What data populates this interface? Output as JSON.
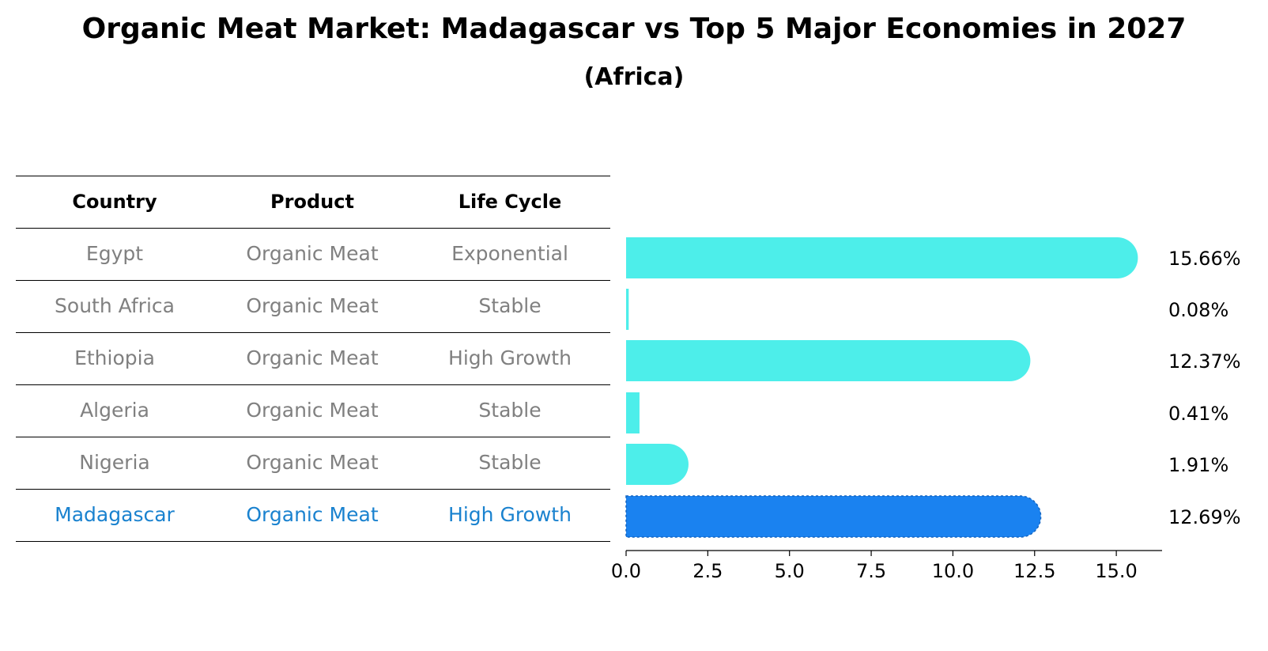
{
  "title": "Organic Meat Market: Madagascar vs Top 5 Major Economies in 2027",
  "subtitle": "(Africa)",
  "table": {
    "headers": [
      "Country",
      "Product",
      "Life Cycle"
    ],
    "rows": [
      {
        "country": "Egypt",
        "product": "Organic Meat",
        "life_cycle": "Exponential",
        "highlight": false
      },
      {
        "country": "South Africa",
        "product": "Organic Meat",
        "life_cycle": "Stable",
        "highlight": false
      },
      {
        "country": "Ethiopia",
        "product": "Organic Meat",
        "life_cycle": "High Growth",
        "highlight": false
      },
      {
        "country": "Algeria",
        "product": "Organic Meat",
        "life_cycle": "Stable",
        "highlight": false
      },
      {
        "country": "Nigeria",
        "product": "Organic Meat",
        "life_cycle": "Stable",
        "highlight": false
      },
      {
        "country": "Madagascar",
        "product": "Organic Meat",
        "life_cycle": "High Growth",
        "highlight": true
      }
    ]
  },
  "colors": {
    "bar": "#4deeea",
    "highlight_bar": "#1a82f0",
    "row_text": "#808080",
    "highlight_text": "#1a82cf"
  },
  "chart_data": {
    "type": "bar",
    "orientation": "horizontal",
    "categories": [
      "Egypt",
      "South Africa",
      "Ethiopia",
      "Algeria",
      "Nigeria",
      "Madagascar"
    ],
    "values": [
      15.66,
      0.08,
      12.37,
      0.41,
      1.91,
      12.69
    ],
    "value_labels": [
      "15.66%",
      "0.08%",
      "12.37%",
      "0.41%",
      "1.91%",
      "12.69%"
    ],
    "xlim": [
      0,
      16.4
    ],
    "xticks": [
      0.0,
      2.5,
      5.0,
      7.5,
      10.0,
      12.5,
      15.0
    ],
    "xtick_labels": [
      "0.0",
      "2.5",
      "5.0",
      "7.5",
      "10.0",
      "12.5",
      "15.0"
    ],
    "highlight": "Madagascar",
    "grid": false
  }
}
